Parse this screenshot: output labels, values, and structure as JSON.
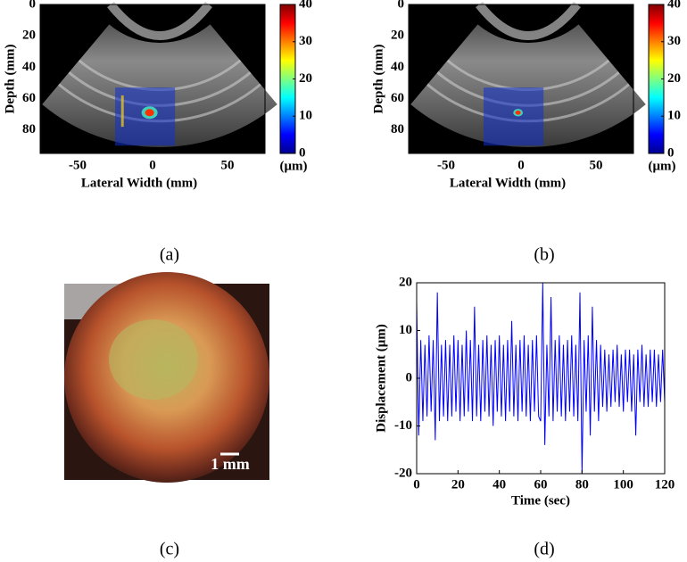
{
  "chart_data": [
    {
      "type": "image",
      "caption": "(a)",
      "x_label": "Lateral Width (mm)",
      "y_label": "Depth (mm)",
      "xlim": [
        -75,
        75
      ],
      "ylim": [
        0,
        95
      ],
      "xticks": [
        -50,
        0,
        50
      ],
      "yticks": [
        0,
        20,
        40,
        60,
        80
      ],
      "colorbar": {
        "lim": [
          0,
          40
        ],
        "ticks": [
          0,
          10,
          20,
          30,
          40
        ],
        "label": "(μm)"
      }
    },
    {
      "type": "image",
      "caption": "(b)",
      "x_label": "Lateral Width (mm)",
      "y_label": "Depth (mm)",
      "xlim": [
        -75,
        75
      ],
      "ylim": [
        0,
        95
      ],
      "xticks": [
        -50,
        0,
        50
      ],
      "yticks": [
        0,
        20,
        40,
        60,
        80
      ],
      "colorbar": {
        "lim": [
          0,
          40
        ],
        "ticks": [
          0,
          10,
          20,
          30,
          40
        ],
        "label": "(μm)"
      }
    },
    {
      "type": "photo",
      "caption": "(c)",
      "scale_bar_label": "1 mm"
    },
    {
      "type": "line",
      "caption": "(d)",
      "x_label": "Time (sec)",
      "y_label": "Displacement (μm)",
      "color": "#0000ff",
      "xlim": [
        0,
        120
      ],
      "ylim": [
        -20,
        20
      ],
      "xticks": [
        0,
        20,
        40,
        60,
        80,
        100,
        120
      ],
      "yticks": [
        -20,
        -10,
        0,
        10,
        20
      ],
      "x": [
        0,
        1,
        2,
        3,
        4,
        5,
        6,
        7,
        8,
        9,
        10,
        11,
        12,
        13,
        14,
        15,
        16,
        17,
        18,
        19,
        20,
        21,
        22,
        23,
        24,
        25,
        26,
        27,
        28,
        29,
        30,
        31,
        32,
        33,
        34,
        35,
        36,
        37,
        38,
        39,
        40,
        41,
        42,
        43,
        44,
        45,
        46,
        47,
        48,
        49,
        50,
        51,
        52,
        53,
        54,
        55,
        56,
        57,
        58,
        59,
        60,
        61,
        62,
        63,
        64,
        65,
        66,
        67,
        68,
        69,
        70,
        71,
        72,
        73,
        74,
        75,
        76,
        77,
        78,
        79,
        80,
        81,
        82,
        83,
        84,
        85,
        86,
        87,
        88,
        89,
        90,
        91,
        92,
        93,
        94,
        95,
        96,
        97,
        98,
        99,
        100,
        101,
        102,
        103,
        104,
        105,
        106,
        107,
        108,
        109,
        110,
        111,
        112,
        113,
        114,
        115,
        116,
        117,
        118,
        119,
        120
      ],
      "values": [
        16,
        -12,
        8,
        -9,
        7,
        -8,
        9,
        -7,
        8,
        -13,
        18,
        -9,
        7,
        -8,
        8,
        -9,
        7,
        -8,
        9,
        -7,
        8,
        -9,
        7,
        -8,
        10,
        -7,
        8,
        -9,
        15,
        -8,
        7,
        -9,
        8,
        -7,
        9,
        -8,
        7,
        -10,
        8,
        -7,
        9,
        -8,
        7,
        -9,
        8,
        -7,
        12,
        -8,
        7,
        -9,
        8,
        -7,
        9,
        -8,
        7,
        -9,
        8,
        -7,
        9,
        -8,
        -9,
        20,
        -14,
        7,
        -8,
        17,
        -9,
        8,
        -7,
        9,
        -8,
        7,
        -9,
        8,
        -7,
        9,
        -8,
        7,
        -9,
        18,
        -20,
        8,
        -7,
        9,
        -12,
        15,
        -7,
        8,
        -9,
        7,
        -6,
        6,
        -7,
        5,
        -6,
        6,
        -5,
        7,
        -6,
        5,
        -7,
        6,
        -5,
        6,
        -7,
        5,
        -12,
        6,
        -5,
        7,
        -6,
        5,
        -6,
        6,
        -5,
        6,
        -6,
        5,
        -5,
        6,
        -5
      ]
    }
  ]
}
